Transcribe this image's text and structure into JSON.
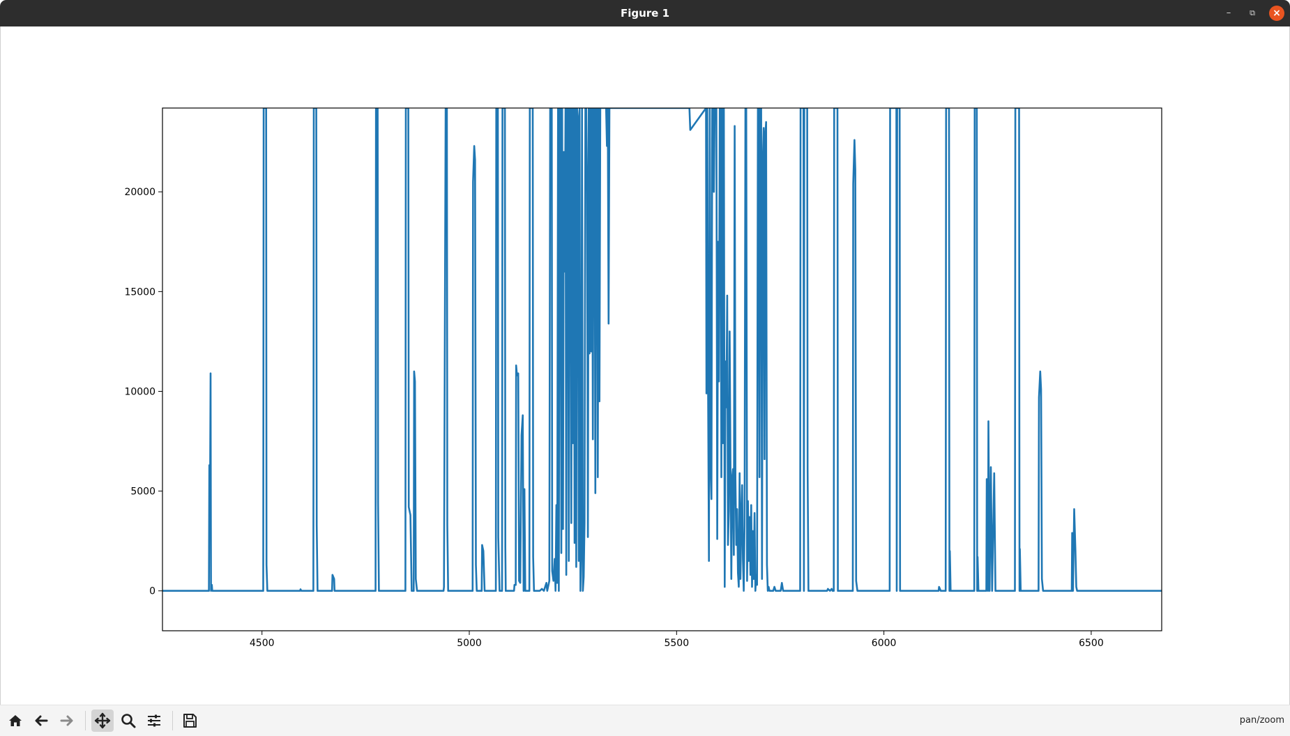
{
  "window": {
    "title": "Figure 1"
  },
  "toolbar": {
    "buttons": [
      "home-icon",
      "back-arrow-icon",
      "forward-arrow-icon",
      "pan-icon",
      "zoom-icon",
      "configure-subplots-icon",
      "save-icon"
    ],
    "mode_label": "pan/zoom"
  },
  "colors": {
    "line": "#1f77b4",
    "titlebar": "#2d2d2d",
    "close": "#e95420"
  },
  "chart_data": {
    "type": "line",
    "title": "",
    "xlabel": "",
    "ylabel": "",
    "xlim": [
      4260,
      6670
    ],
    "ylim": [
      -2000,
      24200
    ],
    "xticks": [
      4500,
      5000,
      5500,
      6000,
      6500
    ],
    "yticks": [
      0,
      5000,
      10000,
      15000,
      20000
    ],
    "grid": false,
    "series": [
      {
        "values": [
          [
            4260,
            0
          ],
          [
            4372,
            0
          ],
          [
            4373,
            6300
          ],
          [
            4375,
            6300
          ],
          [
            4376,
            10900
          ],
          [
            4377,
            0
          ],
          [
            4379,
            300
          ],
          [
            4380,
            0
          ],
          [
            4503,
            0
          ],
          [
            4504,
            24200
          ],
          [
            4510,
            24200
          ],
          [
            4511,
            1300
          ],
          [
            4513,
            0
          ],
          [
            4592,
            0
          ],
          [
            4593,
            80
          ],
          [
            4595,
            0
          ],
          [
            4624,
            0
          ],
          [
            4625,
            24200
          ],
          [
            4631,
            24200
          ],
          [
            4632,
            3300
          ],
          [
            4634,
            0
          ],
          [
            4669,
            0
          ],
          [
            4670,
            800
          ],
          [
            4674,
            600
          ],
          [
            4675,
            0
          ],
          [
            4774,
            0
          ],
          [
            4775,
            24200
          ],
          [
            4779,
            24200
          ],
          [
            4780,
            4400
          ],
          [
            4782,
            0
          ],
          [
            4846,
            0
          ],
          [
            4847,
            24200
          ],
          [
            4853,
            24200
          ],
          [
            4854,
            4200
          ],
          [
            4858,
            3800
          ],
          [
            4861,
            0
          ],
          [
            4866,
            0
          ],
          [
            4867,
            11000
          ],
          [
            4869,
            10500
          ],
          [
            4871,
            600
          ],
          [
            4874,
            0
          ],
          [
            4938,
            0
          ],
          [
            4939,
            200
          ],
          [
            4943,
            24200
          ],
          [
            4946,
            24200
          ],
          [
            4947,
            3300
          ],
          [
            4949,
            0
          ],
          [
            5008,
            0
          ],
          [
            5009,
            20500
          ],
          [
            5012,
            22300
          ],
          [
            5014,
            21600
          ],
          [
            5016,
            1300
          ],
          [
            5018,
            0
          ],
          [
            5030,
            0
          ],
          [
            5031,
            2300
          ],
          [
            5034,
            2000
          ],
          [
            5037,
            0
          ],
          [
            5064,
            0
          ],
          [
            5065,
            24200
          ],
          [
            5069,
            24200
          ],
          [
            5070,
            2700
          ],
          [
            5073,
            0
          ],
          [
            5079,
            0
          ],
          [
            5080,
            24200
          ],
          [
            5086,
            24200
          ],
          [
            5087,
            2200
          ],
          [
            5088,
            0
          ],
          [
            5108,
            0
          ],
          [
            5109,
            300
          ],
          [
            5112,
            300
          ],
          [
            5113,
            11300
          ],
          [
            5115,
            10800
          ],
          [
            5118,
            10900
          ],
          [
            5120,
            500
          ],
          [
            5123,
            400
          ],
          [
            5126,
            7800
          ],
          [
            5129,
            8800
          ],
          [
            5131,
            0
          ],
          [
            5133,
            5100
          ],
          [
            5135,
            0
          ],
          [
            5145,
            0
          ],
          [
            5146,
            24200
          ],
          [
            5153,
            24200
          ],
          [
            5154,
            1700
          ],
          [
            5156,
            0
          ],
          [
            5170,
            0
          ],
          [
            5175,
            100
          ],
          [
            5180,
            0
          ],
          [
            5186,
            400
          ],
          [
            5188,
            0
          ],
          [
            5193,
            500
          ],
          [
            5195,
            24200
          ],
          [
            5198,
            24200
          ],
          [
            5199,
            24200
          ],
          [
            5200,
            1000
          ],
          [
            5203,
            500
          ],
          [
            5206,
            1600
          ],
          [
            5208,
            0
          ],
          [
            5210,
            4300
          ],
          [
            5212,
            400
          ],
          [
            5214,
            24200
          ],
          [
            5216,
            0
          ],
          [
            5218,
            24200
          ],
          [
            5220,
            24200
          ],
          [
            5222,
            1900
          ],
          [
            5224,
            24200
          ],
          [
            5226,
            3100
          ],
          [
            5228,
            22000
          ],
          [
            5230,
            16000
          ],
          [
            5232,
            24200
          ],
          [
            5234,
            800
          ],
          [
            5236,
            24200
          ],
          [
            5238,
            24200
          ],
          [
            5240,
            1500
          ],
          [
            5242,
            24200
          ],
          [
            5244,
            24200
          ],
          [
            5246,
            3400
          ],
          [
            5248,
            24200
          ],
          [
            5250,
            7400
          ],
          [
            5252,
            24200
          ],
          [
            5254,
            2400
          ],
          [
            5256,
            24200
          ],
          [
            5258,
            1200
          ],
          [
            5260,
            24200
          ],
          [
            5262,
            23700
          ],
          [
            5264,
            1500
          ],
          [
            5266,
            24200
          ],
          [
            5268,
            0
          ],
          [
            5270,
            2300
          ],
          [
            5272,
            24200
          ],
          [
            5274,
            0
          ],
          [
            5276,
            700
          ],
          [
            5278,
            3400
          ],
          [
            5280,
            24200
          ],
          [
            5282,
            24200
          ],
          [
            5284,
            20000
          ],
          [
            5286,
            2700
          ],
          [
            5288,
            24200
          ],
          [
            5290,
            11900
          ],
          [
            5292,
            24200
          ],
          [
            5294,
            12000
          ],
          [
            5296,
            24200
          ],
          [
            5298,
            7600
          ],
          [
            5300,
            24200
          ],
          [
            5302,
            24200
          ],
          [
            5304,
            4900
          ],
          [
            5306,
            24200
          ],
          [
            5308,
            24200
          ],
          [
            5310,
            5700
          ],
          [
            5312,
            24200
          ],
          [
            5314,
            9500
          ],
          [
            5316,
            24200
          ],
          [
            5318,
            24200
          ],
          [
            5320,
            24200
          ],
          [
            5322,
            24200
          ],
          [
            5330,
            24200
          ],
          [
            5332,
            22300
          ],
          [
            5334,
            24200
          ],
          [
            5336,
            13400
          ],
          [
            5338,
            24200
          ],
          [
            5340,
            24200
          ],
          [
            5531,
            24200
          ],
          [
            5533,
            23100
          ],
          [
            5571,
            24200
          ],
          [
            5572,
            9900
          ],
          [
            5574,
            24200
          ],
          [
            5576,
            9900
          ],
          [
            5578,
            1500
          ],
          [
            5580,
            24200
          ],
          [
            5582,
            6200
          ],
          [
            5584,
            4600
          ],
          [
            5586,
            24200
          ],
          [
            5588,
            24200
          ],
          [
            5590,
            20000
          ],
          [
            5592,
            24200
          ],
          [
            5594,
            24200
          ],
          [
            5596,
            24200
          ],
          [
            5598,
            2600
          ],
          [
            5600,
            17500
          ],
          [
            5602,
            10500
          ],
          [
            5604,
            24200
          ],
          [
            5606,
            24200
          ],
          [
            5608,
            5700
          ],
          [
            5610,
            24200
          ],
          [
            5612,
            7400
          ],
          [
            5614,
            24200
          ],
          [
            5616,
            200
          ],
          [
            5618,
            11500
          ],
          [
            5620,
            9200
          ],
          [
            5622,
            14800
          ],
          [
            5624,
            2300
          ],
          [
            5626,
            4000
          ],
          [
            5628,
            13000
          ],
          [
            5630,
            6400
          ],
          [
            5632,
            600
          ],
          [
            5634,
            5700
          ],
          [
            5636,
            6100
          ],
          [
            5638,
            1800
          ],
          [
            5640,
            23300
          ],
          [
            5642,
            5600
          ],
          [
            5644,
            2300
          ],
          [
            5646,
            4100
          ],
          [
            5648,
            900
          ],
          [
            5650,
            200
          ],
          [
            5652,
            5900
          ],
          [
            5654,
            600
          ],
          [
            5656,
            3600
          ],
          [
            5658,
            5300
          ],
          [
            5660,
            1600
          ],
          [
            5662,
            0
          ],
          [
            5664,
            3300
          ],
          [
            5666,
            24200
          ],
          [
            5668,
            24200
          ],
          [
            5670,
            500
          ],
          [
            5672,
            4500
          ],
          [
            5674,
            1500
          ],
          [
            5676,
            3700
          ],
          [
            5678,
            800
          ],
          [
            5680,
            4300
          ],
          [
            5682,
            200
          ],
          [
            5684,
            3000
          ],
          [
            5686,
            600
          ],
          [
            5688,
            3900
          ],
          [
            5690,
            0
          ],
          [
            5692,
            800
          ],
          [
            5694,
            300
          ],
          [
            5696,
            24200
          ],
          [
            5698,
            24200
          ],
          [
            5700,
            5700
          ],
          [
            5702,
            24200
          ],
          [
            5704,
            24200
          ],
          [
            5706,
            600
          ],
          [
            5708,
            21600
          ],
          [
            5710,
            23200
          ],
          [
            5712,
            6600
          ],
          [
            5714,
            22900
          ],
          [
            5716,
            23500
          ],
          [
            5718,
            1300
          ],
          [
            5720,
            0
          ],
          [
            5722,
            200
          ],
          [
            5724,
            0
          ],
          [
            5733,
            0
          ],
          [
            5736,
            200
          ],
          [
            5739,
            0
          ],
          [
            5751,
            0
          ],
          [
            5754,
            400
          ],
          [
            5757,
            0
          ],
          [
            5798,
            0
          ],
          [
            5799,
            24200
          ],
          [
            5806,
            24200
          ],
          [
            5807,
            0
          ],
          [
            5808,
            24200
          ],
          [
            5815,
            24200
          ],
          [
            5816,
            6100
          ],
          [
            5818,
            0
          ],
          [
            5863,
            0
          ],
          [
            5865,
            100
          ],
          [
            5870,
            0
          ],
          [
            5874,
            100
          ],
          [
            5876,
            0
          ],
          [
            5879,
            0
          ],
          [
            5880,
            24200
          ],
          [
            5888,
            24200
          ],
          [
            5889,
            0
          ],
          [
            5925,
            0
          ],
          [
            5926,
            20400
          ],
          [
            5929,
            22600
          ],
          [
            5931,
            21100
          ],
          [
            5933,
            500
          ],
          [
            5936,
            0
          ],
          [
            6014,
            0
          ],
          [
            6015,
            24200
          ],
          [
            6030,
            24200
          ],
          [
            6031,
            0
          ],
          [
            6032,
            24200
          ],
          [
            6038,
            24200
          ],
          [
            6039,
            0
          ],
          [
            6132,
            0
          ],
          [
            6133,
            200
          ],
          [
            6137,
            0
          ],
          [
            6149,
            0
          ],
          [
            6150,
            24200
          ],
          [
            6157,
            24200
          ],
          [
            6158,
            0
          ],
          [
            6159,
            2000
          ],
          [
            6161,
            0
          ],
          [
            6218,
            0
          ],
          [
            6219,
            24200
          ],
          [
            6224,
            24200
          ],
          [
            6225,
            0
          ],
          [
            6226,
            1700
          ],
          [
            6228,
            0
          ],
          [
            6247,
            0
          ],
          [
            6248,
            5600
          ],
          [
            6251,
            0
          ],
          [
            6252,
            8500
          ],
          [
            6255,
            0
          ],
          [
            6258,
            6200
          ],
          [
            6261,
            0
          ],
          [
            6266,
            5900
          ],
          [
            6269,
            0
          ],
          [
            6316,
            0
          ],
          [
            6317,
            24200
          ],
          [
            6326,
            24200
          ],
          [
            6327,
            0
          ],
          [
            6328,
            2100
          ],
          [
            6330,
            0
          ],
          [
            6373,
            0
          ],
          [
            6374,
            9700
          ],
          [
            6377,
            11000
          ],
          [
            6379,
            10100
          ],
          [
            6381,
            600
          ],
          [
            6384,
            0
          ],
          [
            6453,
            0
          ],
          [
            6454,
            2900
          ],
          [
            6456,
            0
          ],
          [
            6459,
            4100
          ],
          [
            6462,
            2000
          ],
          [
            6464,
            200
          ],
          [
            6466,
            0
          ],
          [
            6670,
            0
          ]
        ]
      }
    ]
  }
}
